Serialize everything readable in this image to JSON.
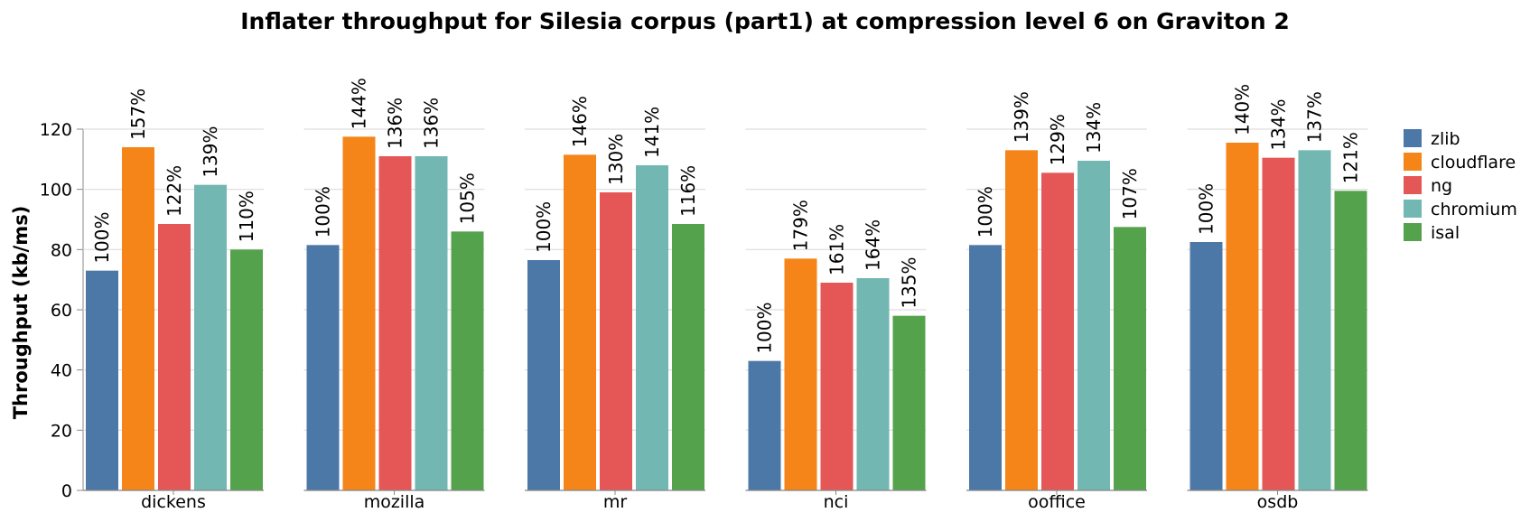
{
  "chart_data": {
    "type": "bar",
    "title": "Inflater throughput for Silesia corpus (part1) at compression level 6 on Graviton 2",
    "ylabel": "Throughput (kb/ms)",
    "xlabel": "",
    "ylim": [
      0,
      120
    ],
    "yticks": [
      0,
      20,
      40,
      60,
      80,
      100,
      120
    ],
    "grid": true,
    "legend_position": "right",
    "categories": [
      "dickens",
      "mozilla",
      "mr",
      "nci",
      "ooffice",
      "osdb"
    ],
    "series": [
      {
        "name": "zlib",
        "color": "#4c78a8",
        "values": [
          73,
          81.5,
          76.5,
          43,
          81.5,
          82.5
        ],
        "labels": [
          "100%",
          "100%",
          "100%",
          "100%",
          "100%",
          "100%"
        ]
      },
      {
        "name": "cloudflare",
        "color": "#f58518",
        "values": [
          114,
          117.5,
          111.5,
          77,
          113,
          115.5
        ],
        "labels": [
          "157%",
          "144%",
          "146%",
          "179%",
          "139%",
          "140%"
        ]
      },
      {
        "name": "ng",
        "color": "#e45756",
        "values": [
          88.5,
          111,
          99,
          69,
          105.5,
          110.5
        ],
        "labels": [
          "122%",
          "136%",
          "130%",
          "161%",
          "129%",
          "134%"
        ]
      },
      {
        "name": "chromium",
        "color": "#72b7b2",
        "values": [
          101.5,
          111,
          108,
          70.5,
          109.5,
          113
        ],
        "labels": [
          "139%",
          "136%",
          "141%",
          "164%",
          "134%",
          "137%"
        ]
      },
      {
        "name": "isal",
        "color": "#54a24b",
        "values": [
          80,
          86,
          88.5,
          58,
          87.5,
          99.5
        ],
        "labels": [
          "110%",
          "105%",
          "116%",
          "135%",
          "107%",
          "121%"
        ]
      }
    ]
  }
}
